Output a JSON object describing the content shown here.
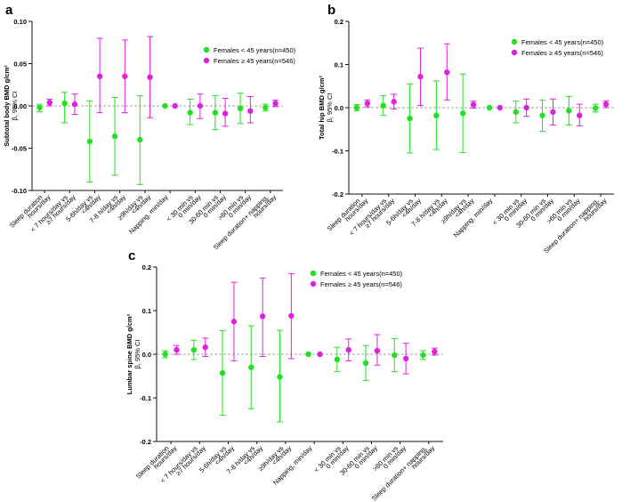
{
  "colors": {
    "green": "#22e022",
    "magenta": "#dd22dd",
    "axis": "#111111",
    "zero_line": "#888888"
  },
  "legend": {
    "series": [
      {
        "name": "Females < 45 years(n=450)",
        "color": "#22e022"
      },
      {
        "name": "Females ≥ 45 years(n=546)",
        "color": "#dd22dd"
      }
    ]
  },
  "chart_data": [
    {
      "panel": "a",
      "type": "scatter",
      "ylabel": "Subtotal body BMD g/cm²",
      "ylabel2": "β, 95% CI",
      "ylim": [
        -0.1,
        0.1
      ],
      "yticks": [
        "0.10",
        "0.05",
        "0.00",
        "-0.05",
        "-0.10"
      ],
      "ytick_values": [
        0.1,
        0.05,
        0,
        -0.05,
        -0.1
      ],
      "categories": [
        [
          "Sleep duration",
          "hours/day"
        ],
        [
          "< 7 hours/day vs",
          "≥7 hours/day"
        ],
        [
          "5-6h/day vs",
          "<4h/day"
        ],
        [
          "7-8 h/day vs",
          "<4h/day"
        ],
        [
          "≥9h/day vs",
          "<4h/day"
        ],
        [
          "Napping, min/day"
        ],
        [
          "< 30 min vs",
          "0 min/day"
        ],
        [
          "30-60 min vs",
          "0 min/day"
        ],
        [
          ">60 min vs",
          "0 min/day"
        ],
        [
          "Sleep duration+ napping,",
          "hours/day"
        ]
      ],
      "series": [
        {
          "name": "Females < 45 years(n=450)",
          "values": [
            -0.002,
            0.003,
            -0.042,
            -0.036,
            -0.04,
            0.0,
            -0.008,
            -0.008,
            -0.003,
            -0.002
          ],
          "ci_low": [
            -0.007,
            -0.02,
            -0.09,
            -0.082,
            -0.093,
            0.0,
            -0.022,
            -0.028,
            -0.021,
            -0.006
          ],
          "ci_high": [
            0.002,
            0.016,
            0.006,
            0.01,
            0.012,
            0.0,
            0.008,
            0.012,
            0.015,
            0.002
          ]
        },
        {
          "name": "Females ≥ 45 years(n=546)",
          "values": [
            0.004,
            0.002,
            0.035,
            0.035,
            0.034,
            0.0,
            0.0,
            -0.009,
            -0.006,
            0.003
          ],
          "ci_low": [
            0.0,
            -0.01,
            -0.008,
            -0.008,
            -0.014,
            0.0,
            -0.015,
            -0.024,
            -0.02,
            -0.001
          ],
          "ci_high": [
            0.008,
            0.014,
            0.08,
            0.078,
            0.082,
            0.0,
            0.014,
            0.009,
            0.011,
            0.007
          ]
        }
      ]
    },
    {
      "panel": "b",
      "type": "scatter",
      "ylabel": "Total hip BMD g/cm²",
      "ylabel2": "β, 95% CI",
      "ylim": [
        -0.2,
        0.2
      ],
      "yticks": [
        "0.2",
        "0.1",
        "0.0",
        "-0.1",
        "-0.2"
      ],
      "ytick_values": [
        0.2,
        0.1,
        0,
        -0.1,
        -0.2
      ],
      "categories": [
        [
          "Sleep duration",
          "hours/day"
        ],
        [
          "< 7 hours/day vs",
          "≥7 hours/day"
        ],
        [
          "5-6h/day vs",
          "<4h/day"
        ],
        [
          "7-8 h/day vs",
          "<4h/day"
        ],
        [
          "≥9h/day vs",
          "<4h/day"
        ],
        [
          "Napping, min/day"
        ],
        [
          "< 30 min vs",
          "0 min/day"
        ],
        [
          "30-60 min vs",
          "0 min/day"
        ],
        [
          ">60 min vs",
          "0 min/day"
        ],
        [
          "Sleep duration+ napping,",
          "hours/day"
        ]
      ],
      "series": [
        {
          "name": "Females < 45 years(n=450)",
          "values": [
            0.0,
            0.005,
            -0.025,
            -0.018,
            -0.013,
            0.0,
            -0.01,
            -0.018,
            -0.007,
            -0.001
          ],
          "ci_low": [
            -0.007,
            -0.018,
            -0.105,
            -0.097,
            -0.104,
            0.0,
            -0.035,
            -0.055,
            -0.04,
            -0.01
          ],
          "ci_high": [
            0.007,
            0.028,
            0.055,
            0.062,
            0.078,
            0.0,
            0.015,
            0.018,
            0.026,
            0.008
          ]
        },
        {
          "name": "Females ≥ 45 years(n=546)",
          "values": [
            0.01,
            0.014,
            0.072,
            0.082,
            0.007,
            0.0,
            0.0,
            -0.01,
            -0.018,
            0.008
          ],
          "ci_low": [
            0.002,
            -0.003,
            0.005,
            0.018,
            -0.001,
            0.0,
            -0.02,
            -0.04,
            -0.042,
            0.0
          ],
          "ci_high": [
            0.018,
            0.031,
            0.138,
            0.148,
            0.015,
            0.0,
            0.02,
            0.02,
            0.008,
            0.016
          ]
        }
      ]
    },
    {
      "panel": "c",
      "type": "scatter",
      "ylabel": "Lumbar spine BMD g/cm²",
      "ylabel2": "β, 95% CI",
      "ylim": [
        -0.2,
        0.2
      ],
      "yticks": [
        "0.2",
        "0.1",
        "0.0",
        "-0.1",
        "-0.2"
      ],
      "ytick_values": [
        0.2,
        0.1,
        0,
        -0.1,
        -0.2
      ],
      "categories": [
        [
          "Sleep duration",
          "hours/day"
        ],
        [
          "< 7 hours/day vs",
          "≥7 hours/day"
        ],
        [
          "5-6h/day vs",
          "<4h/day"
        ],
        [
          "7-8 h/day vs",
          "<4h/day"
        ],
        [
          "≥9h/day vs",
          "<4h/day"
        ],
        [
          "Napping, min/day"
        ],
        [
          "< 30 min vs",
          "0 min/day"
        ],
        [
          "30-60 min vs",
          "0 min/day"
        ],
        [
          ">60 min vs",
          "0 min/day"
        ],
        [
          "Sleep duration+ napping,",
          "hours/day"
        ]
      ],
      "series": [
        {
          "name": "Females < 45 years(n=450)",
          "values": [
            0.0,
            0.01,
            -0.043,
            -0.03,
            -0.052,
            0.0,
            -0.012,
            -0.02,
            -0.002,
            -0.002
          ],
          "ci_low": [
            -0.008,
            -0.012,
            -0.14,
            -0.125,
            -0.155,
            0.0,
            -0.04,
            -0.06,
            -0.04,
            -0.012
          ],
          "ci_high": [
            0.008,
            0.032,
            0.054,
            0.065,
            0.055,
            0.0,
            0.016,
            0.02,
            0.036,
            0.008
          ]
        },
        {
          "name": "Females ≥ 45 years(n=546)",
          "values": [
            0.01,
            0.016,
            0.075,
            0.087,
            0.088,
            0.0,
            0.01,
            0.008,
            -0.01,
            0.006
          ],
          "ci_low": [
            0.0,
            -0.005,
            -0.015,
            -0.005,
            -0.01,
            0.0,
            -0.015,
            -0.025,
            -0.045,
            -0.002
          ],
          "ci_high": [
            0.02,
            0.037,
            0.165,
            0.175,
            0.185,
            0.0,
            0.035,
            0.045,
            0.025,
            0.014
          ]
        }
      ]
    }
  ]
}
